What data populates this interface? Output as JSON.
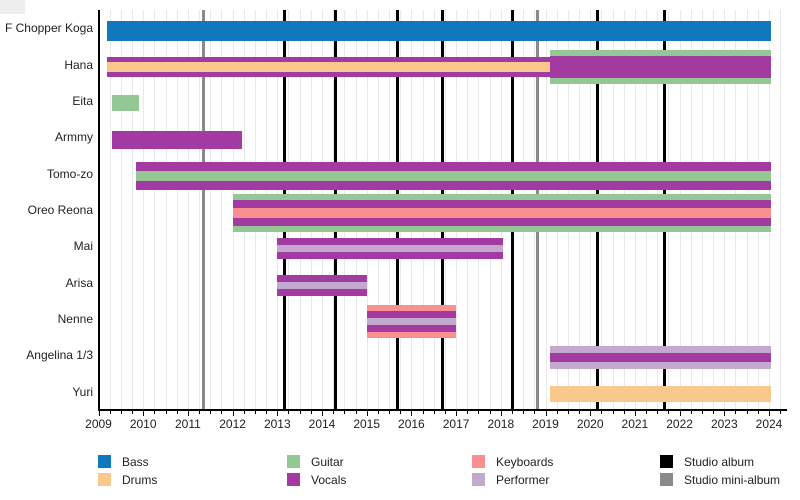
{
  "chart_data": {
    "type": "bar",
    "subtype": "gantt-member-timeline",
    "x_axis": {
      "min": 2009,
      "max": 2024,
      "tick_step": 1,
      "minor_tick_step": 0.25,
      "tick_labels": [
        "2009",
        "2010",
        "2011",
        "2012",
        "2013",
        "2014",
        "2015",
        "2016",
        "2017",
        "2018",
        "2019",
        "2020",
        "2021",
        "2022",
        "2023",
        "2024"
      ]
    },
    "grid": "vertical-quarterly",
    "role_colors": {
      "bass": "#1078bc",
      "drums": "#f9c88d",
      "guitar": "#93c793",
      "vocals": "#a23aa2",
      "keyboards": "#f98f90",
      "performer": "#c4a9cf"
    },
    "events": {
      "studio_album": {
        "label": "Studio album",
        "color": "#000000",
        "years": [
          2013.17,
          2014.3,
          2015.7,
          2016.7,
          2018.27,
          2020.17,
          2021.67
        ]
      },
      "studio_mini_album": {
        "label": "Studio mini-album",
        "color": "#8a8a8a",
        "years": [
          2011.34,
          2018.83
        ]
      }
    },
    "members": [
      {
        "name": "F Chopper Koga",
        "segments": [
          {
            "start": 2009.2,
            "end": 2024.05,
            "roles": [
              "Bass"
            ],
            "stripes": [
              {
                "role": "bass",
                "h": 20
              }
            ]
          }
        ]
      },
      {
        "name": "Hana",
        "segments": [
          {
            "start": 2009.2,
            "end": 2019.1,
            "roles": [
              "Vocals",
              "Drums"
            ],
            "stripes": [
              {
                "role": "vocals",
                "h": 5
              },
              {
                "role": "drums",
                "h": 10
              },
              {
                "role": "vocals",
                "h": 5
              }
            ]
          },
          {
            "start": 2019.1,
            "end": 2024.05,
            "roles": [
              "Guitar",
              "Vocals"
            ],
            "stripes": [
              {
                "role": "guitar",
                "h": 6
              },
              {
                "role": "vocals",
                "h": 22
              },
              {
                "role": "guitar",
                "h": 6
              }
            ]
          }
        ]
      },
      {
        "name": "Eita",
        "segments": [
          {
            "start": 2009.3,
            "end": 2009.9,
            "roles": [
              "Guitar"
            ],
            "stripes": [
              {
                "role": "guitar",
                "h": 16
              }
            ]
          }
        ]
      },
      {
        "name": "Armmy",
        "segments": [
          {
            "start": 2009.3,
            "end": 2012.2,
            "roles": [
              "Vocals"
            ],
            "stripes": [
              {
                "role": "vocals",
                "h": 18
              }
            ]
          }
        ]
      },
      {
        "name": "Tomo-zo",
        "segments": [
          {
            "start": 2009.85,
            "end": 2024.05,
            "roles": [
              "Vocals",
              "Guitar"
            ],
            "stripes": [
              {
                "role": "vocals",
                "h": 9
              },
              {
                "role": "guitar",
                "h": 10
              },
              {
                "role": "vocals",
                "h": 9
              }
            ]
          }
        ]
      },
      {
        "name": "Oreo Reona",
        "segments": [
          {
            "start": 2012.0,
            "end": 2024.05,
            "roles": [
              "Guitar",
              "Vocals",
              "Keyboards"
            ],
            "stripes": [
              {
                "role": "guitar",
                "h": 6
              },
              {
                "role": "vocals",
                "h": 8
              },
              {
                "role": "keyboards",
                "h": 10
              },
              {
                "role": "vocals",
                "h": 8
              },
              {
                "role": "guitar",
                "h": 6
              }
            ]
          }
        ]
      },
      {
        "name": "Mai",
        "segments": [
          {
            "start": 2013.0,
            "end": 2018.05,
            "roles": [
              "Vocals",
              "Performer"
            ],
            "stripes": [
              {
                "role": "vocals",
                "h": 7
              },
              {
                "role": "performer",
                "h": 7
              },
              {
                "role": "vocals",
                "h": 7
              }
            ]
          }
        ]
      },
      {
        "name": "Arisa",
        "segments": [
          {
            "start": 2013.0,
            "end": 2015.0,
            "roles": [
              "Vocals",
              "Performer"
            ],
            "stripes": [
              {
                "role": "vocals",
                "h": 7
              },
              {
                "role": "performer",
                "h": 7
              },
              {
                "role": "vocals",
                "h": 7
              }
            ]
          }
        ]
      },
      {
        "name": "Nenne",
        "segments": [
          {
            "start": 2015.0,
            "end": 2017.0,
            "roles": [
              "Keyboards",
              "Vocals",
              "Performer"
            ],
            "stripes": [
              {
                "role": "keyboards",
                "h": 6
              },
              {
                "role": "vocals",
                "h": 7
              },
              {
                "role": "performer",
                "h": 7
              },
              {
                "role": "vocals",
                "h": 7
              },
              {
                "role": "keyboards",
                "h": 6
              }
            ]
          }
        ]
      },
      {
        "name": "Angelina 1/3",
        "segments": [
          {
            "start": 2019.1,
            "end": 2024.05,
            "roles": [
              "Performer",
              "Vocals"
            ],
            "stripes": [
              {
                "role": "performer",
                "h": 7
              },
              {
                "role": "vocals",
                "h": 9
              },
              {
                "role": "performer",
                "h": 7
              }
            ]
          }
        ]
      },
      {
        "name": "Yuri",
        "segments": [
          {
            "start": 2019.1,
            "end": 2024.05,
            "roles": [
              "Drums"
            ],
            "stripes": [
              {
                "role": "drums",
                "h": 16
              }
            ]
          }
        ]
      }
    ],
    "legend": {
      "columns": [
        {
          "items": [
            {
              "label": "Bass",
              "color": "#1078bc"
            },
            {
              "label": "Drums",
              "color": "#f9c88d"
            }
          ]
        },
        {
          "items": [
            {
              "label": "Guitar",
              "color": "#93c793"
            },
            {
              "label": "Vocals",
              "color": "#a23aa2"
            }
          ]
        },
        {
          "items": [
            {
              "label": "Keyboards",
              "color": "#f98f90"
            },
            {
              "label": "Performer",
              "color": "#c4a9cf"
            }
          ]
        },
        {
          "items": [
            {
              "label": "Studio album",
              "color": "#000000"
            },
            {
              "label": "Studio mini-album",
              "color": "#8a8a8a"
            }
          ]
        }
      ]
    }
  }
}
